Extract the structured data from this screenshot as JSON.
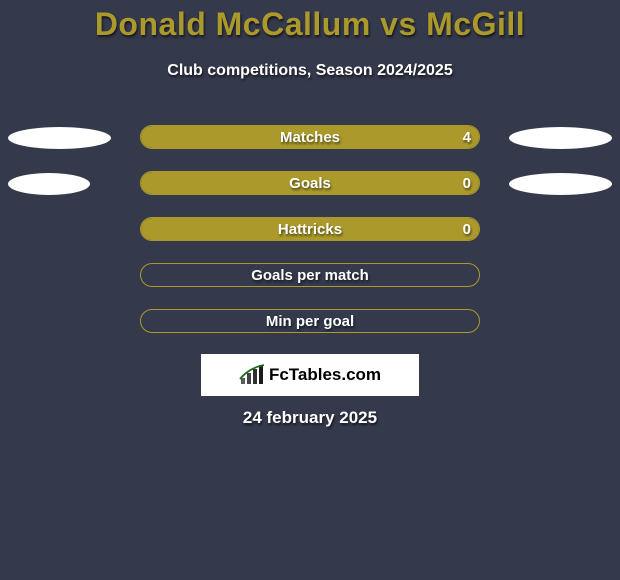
{
  "background_color": "#34394b",
  "title_color": "#ab9a2b",
  "title": "Donald McCallum vs McGill",
  "subtitle": "Club competitions, Season 2024/2025",
  "accent_color": "#ab9a2b",
  "ellipse_color": "#ffffff",
  "bar_border_color": "#ab9a2b",
  "text_color": "#ffffff",
  "logo_text": "FcTables.com",
  "date": "24 february 2025",
  "rows": [
    {
      "label": "Matches",
      "left_value": "",
      "right_value": "4",
      "left_ellipse_w": 103,
      "left_ellipse_h": 22,
      "right_ellipse_w": 103,
      "right_ellipse_h": 22,
      "fill_side": "full"
    },
    {
      "label": "Goals",
      "left_value": "",
      "right_value": "0",
      "left_ellipse_w": 82,
      "left_ellipse_h": 22,
      "right_ellipse_w": 103,
      "right_ellipse_h": 22,
      "fill_side": "full"
    },
    {
      "label": "Hattricks",
      "left_value": "",
      "right_value": "0",
      "left_ellipse_w": 0,
      "left_ellipse_h": 0,
      "right_ellipse_w": 0,
      "right_ellipse_h": 0,
      "fill_side": "full"
    },
    {
      "label": "Goals per match",
      "left_value": "",
      "right_value": "",
      "left_ellipse_w": 0,
      "left_ellipse_h": 0,
      "right_ellipse_w": 0,
      "right_ellipse_h": 0,
      "fill_side": "none"
    },
    {
      "label": "Min per goal",
      "left_value": "",
      "right_value": "",
      "left_ellipse_w": 0,
      "left_ellipse_h": 0,
      "right_ellipse_w": 0,
      "right_ellipse_h": 0,
      "fill_side": "none"
    }
  ]
}
